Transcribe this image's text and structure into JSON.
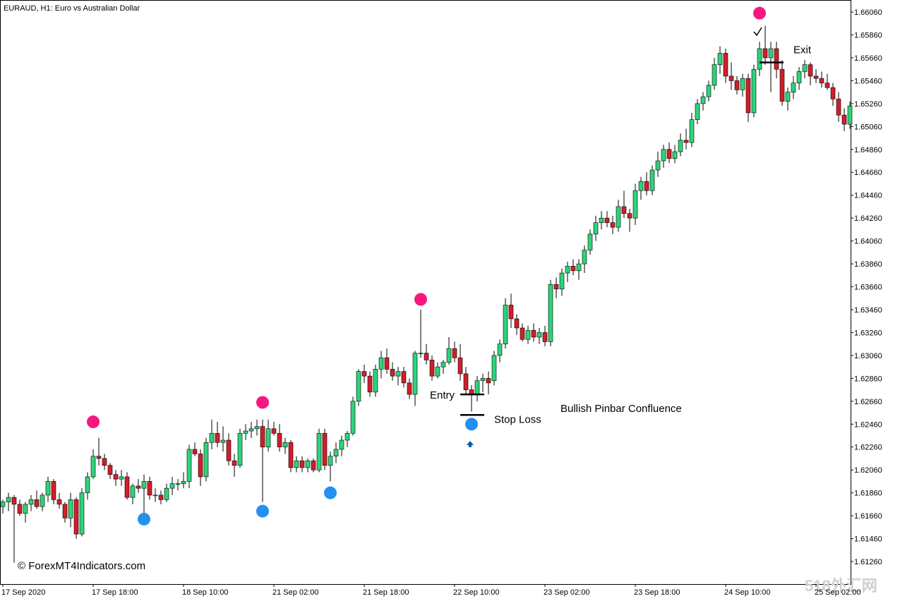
{
  "chart_data": {
    "type": "candlestick",
    "title": "EURAUD, H1:  Euro vs Australian Dollar",
    "copyright": "© ForexMT4Indicators.com",
    "watermark": "518外汇网",
    "ylim": [
      1.61063,
      1.66165
    ],
    "yticks": [
      {
        "value": 1.6126,
        "label": "1.61260"
      },
      {
        "value": 1.6146,
        "label": "1.61460"
      },
      {
        "value": 1.6166,
        "label": "1.61660"
      },
      {
        "value": 1.6186,
        "label": "1.61860"
      },
      {
        "value": 1.6206,
        "label": "1.62060"
      },
      {
        "value": 1.6226,
        "label": "1.62260"
      },
      {
        "value": 1.6246,
        "label": "1.62460"
      },
      {
        "value": 1.6266,
        "label": "1.62660"
      },
      {
        "value": 1.6286,
        "label": "1.62860"
      },
      {
        "value": 1.6306,
        "label": "1.63060"
      },
      {
        "value": 1.6326,
        "label": "1.63260"
      },
      {
        "value": 1.6346,
        "label": "1.63460"
      },
      {
        "value": 1.6366,
        "label": "1.63660"
      },
      {
        "value": 1.6386,
        "label": "1.63860"
      },
      {
        "value": 1.6406,
        "label": "1.64060"
      },
      {
        "value": 1.6426,
        "label": "1.64260"
      },
      {
        "value": 1.6446,
        "label": "1.64460"
      },
      {
        "value": 1.6466,
        "label": "1.64660"
      },
      {
        "value": 1.6486,
        "label": "1.64860"
      },
      {
        "value": 1.6506,
        "label": "1.65060"
      },
      {
        "value": 1.6526,
        "label": "1.65260"
      },
      {
        "value": 1.6546,
        "label": "1.65460"
      },
      {
        "value": 1.6566,
        "label": "1.65660"
      },
      {
        "value": 1.6586,
        "label": "1.65860"
      },
      {
        "value": 1.6606,
        "label": "1.66060"
      }
    ],
    "xticks": [
      {
        "value": 0,
        "label": "17 Sep 2020"
      },
      {
        "value": 16,
        "label": "17 Sep 18:00"
      },
      {
        "value": 32,
        "label": "18 Sep 10:00"
      },
      {
        "value": 48,
        "label": "21 Sep 02:00"
      },
      {
        "value": 64,
        "label": "21 Sep 18:00"
      },
      {
        "value": 80,
        "label": "22 Sep 10:00"
      },
      {
        "value": 96,
        "label": "23 Sep 02:00"
      },
      {
        "value": 112,
        "label": "23 Sep 18:00"
      },
      {
        "value": 128,
        "label": "24 Sep 10:00"
      },
      {
        "value": 144,
        "label": "25 Sep 02:00"
      }
    ],
    "up_color": "#2ed47a",
    "down_color": "#d11f2a",
    "open": [
      1.6174,
      1.6178,
      1.6182,
      1.6176,
      1.6168,
      1.6176,
      1.618,
      1.6174,
      1.6184,
      1.6196,
      1.618,
      1.6176,
      1.6164,
      1.618,
      1.615,
      1.6186,
      1.62,
      1.6218,
      1.6216,
      1.621,
      1.6202,
      1.6198,
      1.62,
      1.6182,
      1.6192,
      1.619,
      1.6196,
      1.6184,
      1.6184,
      1.618,
      1.619,
      1.6194,
      1.6194,
      1.6196,
      1.6224,
      1.622,
      1.62,
      1.623,
      1.6238,
      1.623,
      1.6232,
      1.6214,
      1.621,
      1.6238,
      1.624,
      1.6242,
      1.6244,
      1.6226,
      1.6242,
      1.6238,
      1.6226,
      1.623,
      1.6208,
      1.6214,
      1.6208,
      1.6214,
      1.6206,
      1.6238,
      1.621,
      1.6218,
      1.6224,
      1.6232,
      1.6238,
      1.6266,
      1.6292,
      1.6288,
      1.6274,
      1.6294,
      1.6304,
      1.6294,
      1.6288,
      1.6292,
      1.6282,
      1.6272,
      1.6308,
      1.6308,
      1.6302,
      1.6288,
      1.6296,
      1.63,
      1.6312,
      1.6304,
      1.629,
      1.6276,
      1.6272,
      1.6284,
      1.6286,
      1.6284,
      1.6306,
      1.6316,
      1.635,
      1.6338,
      1.633,
      1.632,
      1.6328,
      1.6322,
      1.6326,
      1.6318,
      1.6368,
      1.6364,
      1.6378,
      1.6384,
      1.638,
      1.6386,
      1.6398,
      1.6412,
      1.6422,
      1.6426,
      1.6422,
      1.6418,
      1.6436,
      1.643,
      1.6426,
      1.645,
      1.6458,
      1.645,
      1.6468,
      1.6476,
      1.6486,
      1.6478,
      1.6484,
      1.6494,
      1.6492,
      1.6512,
      1.6526,
      1.6532,
      1.6542,
      1.656,
      1.657,
      1.655,
      1.6546,
      1.6538,
      1.6548,
      1.6518,
      1.6556,
      1.6574,
      1.6566,
      1.6574,
      1.6556,
      1.6528,
      1.6536,
      1.6544,
      1.6554,
      1.656,
      1.655,
      1.6548,
      1.6544,
      1.654,
      1.653,
      1.6516,
      1.6508
    ],
    "high": [
      1.618,
      1.6186,
      1.6184,
      1.618,
      1.6178,
      1.6184,
      1.6188,
      1.6186,
      1.62,
      1.6198,
      1.6186,
      1.6178,
      1.6186,
      1.6182,
      1.619,
      1.6204,
      1.6224,
      1.6234,
      1.622,
      1.6212,
      1.6206,
      1.6206,
      1.6204,
      1.6194,
      1.6198,
      1.6202,
      1.62,
      1.619,
      1.6188,
      1.6194,
      1.62,
      1.6198,
      1.6204,
      1.6228,
      1.623,
      1.6224,
      1.6234,
      1.625,
      1.6248,
      1.6244,
      1.6238,
      1.622,
      1.6242,
      1.6246,
      1.6248,
      1.625,
      1.625,
      1.625,
      1.6248,
      1.6246,
      1.6234,
      1.6232,
      1.6218,
      1.6218,
      1.6216,
      1.6216,
      1.6242,
      1.6242,
      1.6222,
      1.623,
      1.6236,
      1.624,
      1.627,
      1.6294,
      1.6298,
      1.6292,
      1.6298,
      1.631,
      1.6312,
      1.63,
      1.6296,
      1.6296,
      1.6286,
      1.631,
      1.6346,
      1.6316,
      1.6306,
      1.63,
      1.6302,
      1.6322,
      1.6318,
      1.6316,
      1.6296,
      1.628,
      1.6288,
      1.629,
      1.6292,
      1.631,
      1.632,
      1.6356,
      1.636,
      1.6342,
      1.6334,
      1.6332,
      1.6334,
      1.633,
      1.6332,
      1.6372,
      1.6374,
      1.6382,
      1.6388,
      1.639,
      1.639,
      1.6402,
      1.6416,
      1.6428,
      1.6432,
      1.6432,
      1.6428,
      1.6442,
      1.645,
      1.6434,
      1.6456,
      1.6462,
      1.6466,
      1.6472,
      1.6484,
      1.649,
      1.6492,
      1.649,
      1.65,
      1.6504,
      1.6518,
      1.653,
      1.6536,
      1.6546,
      1.6566,
      1.6576,
      1.6574,
      1.6562,
      1.655,
      1.6552,
      1.6552,
      1.656,
      1.658,
      1.6594,
      1.658,
      1.658,
      1.6564,
      1.654,
      1.655,
      1.6558,
      1.6564,
      1.6562,
      1.6556,
      1.6554,
      1.6552,
      1.6544,
      1.6536,
      1.6522,
      1.6528
    ],
    "low": [
      1.6168,
      1.617,
      1.6125,
      1.6166,
      1.616,
      1.617,
      1.6172,
      1.617,
      1.6178,
      1.6176,
      1.6172,
      1.616,
      1.6156,
      1.6146,
      1.6148,
      1.618,
      1.6198,
      1.621,
      1.6206,
      1.6198,
      1.6192,
      1.6192,
      1.618,
      1.6176,
      1.6186,
      1.6168,
      1.618,
      1.6178,
      1.6176,
      1.6178,
      1.6184,
      1.6188,
      1.619,
      1.619,
      1.6218,
      1.6192,
      1.6196,
      1.6224,
      1.6226,
      1.6222,
      1.621,
      1.62,
      1.6208,
      1.6232,
      1.6234,
      1.6236,
      1.6178,
      1.6222,
      1.6236,
      1.6222,
      1.622,
      1.6204,
      1.6204,
      1.6204,
      1.6204,
      1.6204,
      1.6204,
      1.6206,
      1.6196,
      1.6212,
      1.6218,
      1.6226,
      1.6236,
      1.6262,
      1.6282,
      1.627,
      1.627,
      1.6286,
      1.629,
      1.6284,
      1.628,
      1.6278,
      1.6268,
      1.6262,
      1.6304,
      1.6298,
      1.6284,
      1.6286,
      1.629,
      1.6298,
      1.63,
      1.6284,
      1.6272,
      1.6257,
      1.6266,
      1.6274,
      1.6272,
      1.628,
      1.63,
      1.6312,
      1.633,
      1.6324,
      1.6318,
      1.6316,
      1.6318,
      1.6316,
      1.6314,
      1.6314,
      1.6356,
      1.6358,
      1.637,
      1.6376,
      1.6372,
      1.6378,
      1.6394,
      1.6406,
      1.6416,
      1.6418,
      1.6412,
      1.6414,
      1.6426,
      1.6414,
      1.642,
      1.6442,
      1.6446,
      1.6446,
      1.6462,
      1.647,
      1.6474,
      1.6474,
      1.648,
      1.6486,
      1.6488,
      1.6508,
      1.652,
      1.6528,
      1.6538,
      1.6552,
      1.6544,
      1.6538,
      1.6534,
      1.6532,
      1.651,
      1.6514,
      1.655,
      1.656,
      1.6536,
      1.6548,
      1.6524,
      1.652,
      1.653,
      1.6538,
      1.6548,
      1.6542,
      1.6544,
      1.654,
      1.6538,
      1.6524,
      1.651,
      1.6502,
      1.6504
    ],
    "close": [
      1.6178,
      1.6182,
      1.6176,
      1.6168,
      1.6176,
      1.618,
      1.6174,
      1.6184,
      1.6196,
      1.618,
      1.6176,
      1.6164,
      1.618,
      1.615,
      1.6186,
      1.62,
      1.6218,
      1.6216,
      1.621,
      1.6202,
      1.6198,
      1.62,
      1.6182,
      1.6192,
      1.619,
      1.6196,
      1.6184,
      1.6184,
      1.618,
      1.619,
      1.6194,
      1.6194,
      1.6196,
      1.6224,
      1.622,
      1.62,
      1.623,
      1.6238,
      1.623,
      1.6232,
      1.6214,
      1.621,
      1.6238,
      1.624,
      1.6242,
      1.6244,
      1.6226,
      1.6242,
      1.6238,
      1.6226,
      1.623,
      1.6208,
      1.6214,
      1.6208,
      1.6214,
      1.6206,
      1.6238,
      1.621,
      1.6218,
      1.6224,
      1.6232,
      1.6238,
      1.6266,
      1.6292,
      1.6288,
      1.6274,
      1.6294,
      1.6304,
      1.6294,
      1.6288,
      1.6292,
      1.6282,
      1.6272,
      1.6308,
      1.6308,
      1.6302,
      1.6288,
      1.6296,
      1.63,
      1.6312,
      1.6304,
      1.629,
      1.6276,
      1.6272,
      1.6284,
      1.6286,
      1.6282,
      1.6306,
      1.6316,
      1.635,
      1.6338,
      1.633,
      1.632,
      1.6328,
      1.6322,
      1.6326,
      1.6318,
      1.6368,
      1.6364,
      1.6378,
      1.6384,
      1.638,
      1.6386,
      1.6398,
      1.6412,
      1.6422,
      1.6426,
      1.6422,
      1.6418,
      1.6436,
      1.643,
      1.6426,
      1.645,
      1.6458,
      1.645,
      1.6468,
      1.6476,
      1.6486,
      1.6478,
      1.6484,
      1.6494,
      1.6492,
      1.6512,
      1.6526,
      1.6532,
      1.6542,
      1.656,
      1.657,
      1.655,
      1.6546,
      1.6538,
      1.6548,
      1.6518,
      1.6556,
      1.6574,
      1.6566,
      1.6574,
      1.6556,
      1.6528,
      1.6536,
      1.6544,
      1.6554,
      1.656,
      1.655,
      1.6548,
      1.6544,
      1.654,
      1.653,
      1.6516,
      1.6508,
      1.6524
    ],
    "signals": [
      {
        "color": "#f7177f",
        "points": [
          {
            "index": 16,
            "price": 1.6248
          },
          {
            "index": 46,
            "price": 1.6265
          },
          {
            "index": 74,
            "price": 1.6355
          },
          {
            "index": 134,
            "price": 1.6605
          }
        ]
      },
      {
        "color": "#2391f0",
        "points": [
          {
            "index": 25,
            "price": 1.6163
          },
          {
            "index": 46,
            "price": 1.617
          },
          {
            "index": 58,
            "price": 1.6186
          },
          {
            "index": 83,
            "price": 1.6246
          }
        ]
      }
    ],
    "levels": [
      {
        "label": "Entry",
        "value": 1.6272,
        "index": 83
      },
      {
        "label": "Stop Loss",
        "value": 1.6254,
        "index": 83
      },
      {
        "label": "Exit",
        "value": 1.6562,
        "index": 136
      }
    ],
    "annotation": "Bullish Pinbar Confluence"
  }
}
